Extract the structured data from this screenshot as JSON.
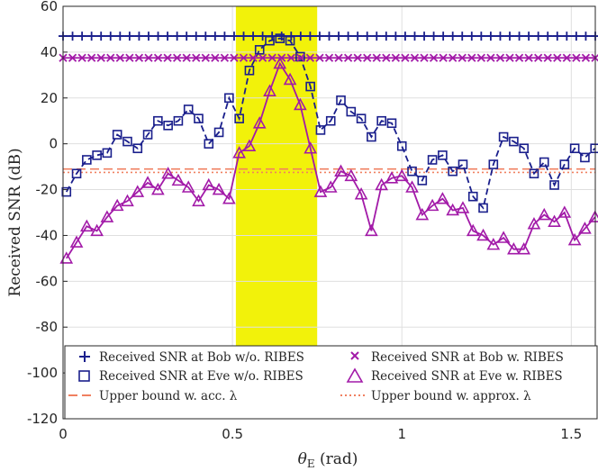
{
  "chart_data": {
    "type": "line",
    "xlabel": "θ_E (rad)",
    "xlabel_main": "θ",
    "xlabel_sub": "E",
    "xlabel_unit": " (rad)",
    "ylabel": "Received SNR (dB)",
    "xlim": [
      0,
      1.5708
    ],
    "ylim": [
      -120,
      60
    ],
    "xticks": [
      0,
      0.5,
      1,
      1.5
    ],
    "xtick_labels": [
      "0",
      "0.5",
      "1",
      "1.5"
    ],
    "yticks": [
      -120,
      -100,
      -80,
      -60,
      -40,
      -20,
      0,
      20,
      40,
      60
    ],
    "ytick_labels": [
      "-120",
      "-100",
      "-80",
      "-60",
      "-40",
      "-20",
      "0",
      "20",
      "40",
      "60"
    ],
    "grid": true,
    "highlight_band": {
      "x_range": [
        0.51,
        0.75
      ],
      "color": "#f2f20a"
    },
    "colors": {
      "bob_no_ribes": "#1a1f8c",
      "eve_no_ribes": "#1a1f8c",
      "bob_ribes": "#a21aa8",
      "eve_ribes": "#a21aa8",
      "bound_acc": "#f08060",
      "bound_approx": "#f08060"
    },
    "series": [
      {
        "name": "Received SNR at Bob w/o. RIBES",
        "marker": "plus",
        "line": "solid",
        "constant": 47
      },
      {
        "name": "Received SNR at Bob w. RIBES",
        "marker": "x",
        "line": "solid",
        "constant": 37.5
      },
      {
        "name": "Received SNR at Eve w/o. RIBES",
        "marker": "square",
        "line": "dashed",
        "x": [
          0.01,
          0.04,
          0.07,
          0.1,
          0.13,
          0.16,
          0.19,
          0.22,
          0.25,
          0.28,
          0.31,
          0.34,
          0.37,
          0.4,
          0.43,
          0.46,
          0.49,
          0.52,
          0.55,
          0.58,
          0.61,
          0.64,
          0.67,
          0.7,
          0.73,
          0.76,
          0.79,
          0.82,
          0.85,
          0.88,
          0.91,
          0.94,
          0.97,
          1.0,
          1.03,
          1.06,
          1.09,
          1.12,
          1.15,
          1.18,
          1.21,
          1.24,
          1.27,
          1.3,
          1.33,
          1.36,
          1.39,
          1.42,
          1.45,
          1.48,
          1.51,
          1.54,
          1.57
        ],
        "values": [
          -21,
          -13,
          -7,
          -5,
          -4,
          4,
          1,
          -2,
          4,
          10,
          8,
          10,
          15,
          11,
          0,
          5,
          20,
          11,
          32,
          41,
          45,
          46,
          45,
          38,
          25,
          6,
          10,
          19,
          14,
          11,
          3,
          10,
          9,
          -1,
          -12,
          -16,
          -7,
          -5,
          -12,
          -9,
          -23,
          -28,
          -9,
          3,
          1,
          -2,
          -13,
          -8,
          -18,
          -9,
          -2,
          -6,
          -2
        ]
      },
      {
        "name": "Received SNR at Eve w. RIBES",
        "marker": "triangle",
        "line": "solid",
        "x": [
          0.01,
          0.04,
          0.07,
          0.1,
          0.13,
          0.16,
          0.19,
          0.22,
          0.25,
          0.28,
          0.31,
          0.34,
          0.37,
          0.4,
          0.43,
          0.46,
          0.49,
          0.52,
          0.55,
          0.58,
          0.61,
          0.64,
          0.67,
          0.7,
          0.73,
          0.76,
          0.79,
          0.82,
          0.85,
          0.88,
          0.91,
          0.94,
          0.97,
          1.0,
          1.03,
          1.06,
          1.09,
          1.12,
          1.15,
          1.18,
          1.21,
          1.24,
          1.27,
          1.3,
          1.33,
          1.36,
          1.39,
          1.42,
          1.45,
          1.48,
          1.51,
          1.54,
          1.57
        ],
        "values": [
          -50,
          -43,
          -36,
          -38,
          -32,
          -27,
          -25,
          -21,
          -17,
          -20,
          -13,
          -16,
          -19,
          -25,
          -18,
          -20,
          -24,
          -4,
          -1,
          9,
          23,
          35,
          28,
          17,
          -2,
          -21,
          -19,
          -12,
          -14,
          -22,
          -38,
          -18,
          -15,
          -14,
          -19,
          -31,
          -27,
          -24,
          -29,
          -28,
          -38,
          -40,
          -44,
          -41,
          -46,
          -46,
          -35,
          -31,
          -34,
          -30,
          -42,
          -37,
          -32
        ]
      },
      {
        "name": "Upper bound w. acc. λ",
        "marker": "none",
        "line": "dashed",
        "constant": -11
      },
      {
        "name": "Upper bound w. approx. λ",
        "marker": "none",
        "line": "dotted",
        "constant": -12.5
      }
    ]
  }
}
